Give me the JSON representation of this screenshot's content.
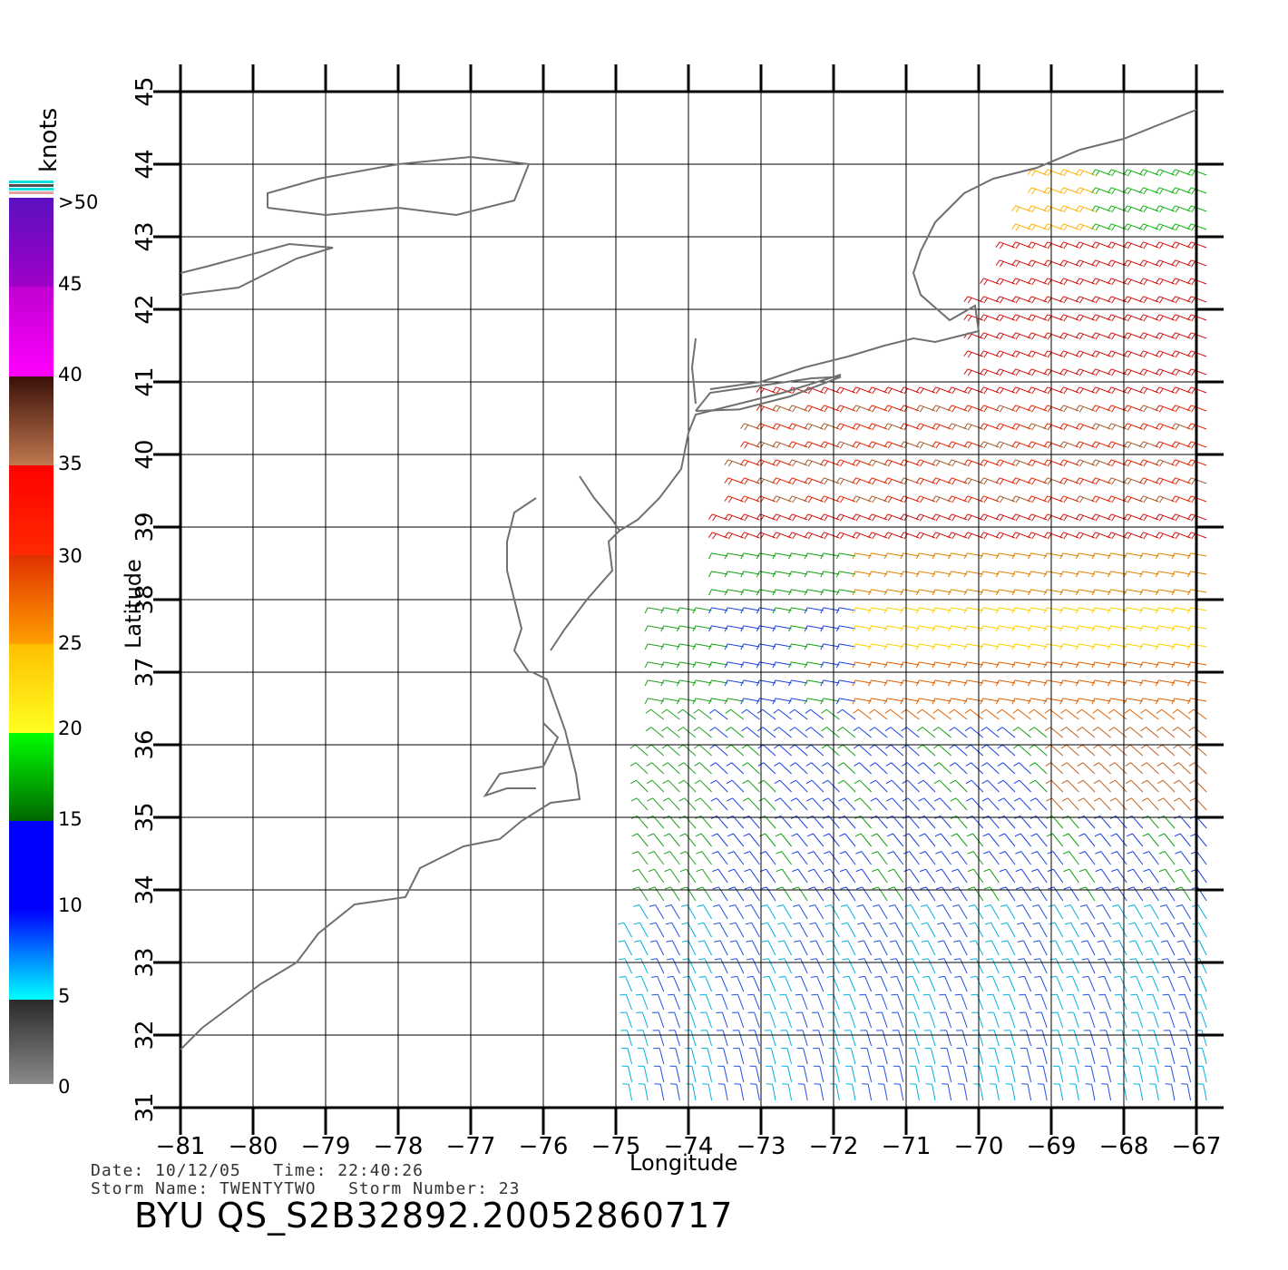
{
  "legend": {
    "unit": "knots",
    "labels": [
      ">50",
      "45",
      "40",
      "35",
      "30",
      "25",
      "20",
      "15",
      "10",
      "5",
      "0"
    ],
    "colors": {
      "over50": "#6a0dad",
      "c45": "#b000c8",
      "c40": "#ff00ff",
      "c35": "#3a1a0a",
      "c30": "#ff0000",
      "c25": "#ff7a00",
      "c20": "#ffff00",
      "c15": "#00ff00",
      "c10": "#0000ff",
      "c5": "#00ffff",
      "c0": "#808080"
    }
  },
  "axes": {
    "xlabel": "Longitude",
    "ylabel": "Latitude",
    "lon_ticks": [
      "−81",
      "−80",
      "−79",
      "−78",
      "−77",
      "−76",
      "−75",
      "−74",
      "−73",
      "−72",
      "−71",
      "−70",
      "−69",
      "−68",
      "−67"
    ],
    "lat_ticks": [
      "31",
      "32",
      "33",
      "34",
      "35",
      "36",
      "37",
      "38",
      "39",
      "40",
      "41",
      "42",
      "43",
      "44",
      "45"
    ],
    "lon_range": [
      -81,
      -67
    ],
    "lat_range": [
      31,
      45
    ],
    "grid": true
  },
  "info": {
    "line1": "Date: 10/12/05   Time: 22:40:26",
    "line2": "Storm Name: TWENTYTWO   Storm Number: 23",
    "title": "BYU QS_S2B32892.20052860717"
  },
  "chart_data": {
    "type": "map",
    "xlabel": "Longitude",
    "ylabel": "Latitude",
    "xlim": [
      -81,
      -67
    ],
    "ylim": [
      31,
      45
    ],
    "colorbar": {
      "unit": "knots",
      "ticks": [
        0,
        5,
        10,
        15,
        20,
        25,
        30,
        35,
        40,
        45,
        ">50"
      ]
    },
    "wind_regions": [
      {
        "band": "30-35 knots (red)",
        "lon": [
          -73.5,
          -67
        ],
        "lat": [
          38.5,
          43
        ]
      },
      {
        "band": "35-40 knots (brown)",
        "lon": [
          -73.2,
          -67
        ],
        "lat": [
          39.3,
          40.8
        ]
      },
      {
        "band": "20-25 knots (yellow/orange)",
        "lon": [
          -72,
          -67
        ],
        "lat": [
          36,
          38
        ]
      },
      {
        "band": "15-20 knots (green)",
        "lon": [
          -74.5,
          -69
        ],
        "lat": [
          34,
          37
        ]
      },
      {
        "band": "10-15 knots (blue)",
        "lon": [
          -74.5,
          -67
        ],
        "lat": [
          31,
          36
        ]
      },
      {
        "band": "5-10 knots (cyan)",
        "lon": [
          -75,
          -67
        ],
        "lat": [
          31,
          34
        ]
      }
    ]
  }
}
